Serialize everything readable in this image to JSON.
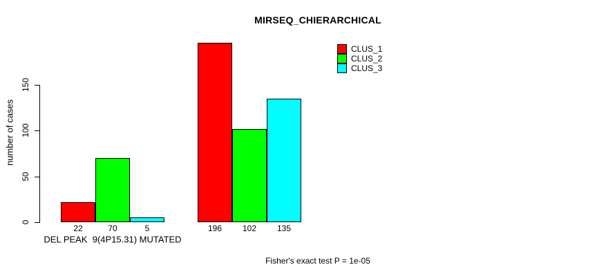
{
  "chart_data": {
    "type": "bar",
    "title": "MIRSEQ_CHIERARCHICAL",
    "ylabel": "number of cases",
    "xlabel": "",
    "annotation": "Fisher's exact test P = 1e-05",
    "yticks": [
      0,
      50,
      100,
      150
    ],
    "ylim": [
      0,
      205
    ],
    "grid": false,
    "legend_position": "top-right",
    "value_labels_shown": true,
    "bar_border_color": "#000000",
    "series": [
      {
        "name": "CLUS_1",
        "color": "#ff0000"
      },
      {
        "name": "CLUS_2",
        "color": "#00ff00"
      },
      {
        "name": "CLUS_3",
        "color": "#00ffff"
      }
    ],
    "groups": [
      {
        "label": "DEL PEAK  9(4P15.31) MUTATED",
        "values": [
          22,
          70,
          5
        ]
      },
      {
        "label": "",
        "values": [
          196,
          102,
          135
        ]
      }
    ]
  }
}
